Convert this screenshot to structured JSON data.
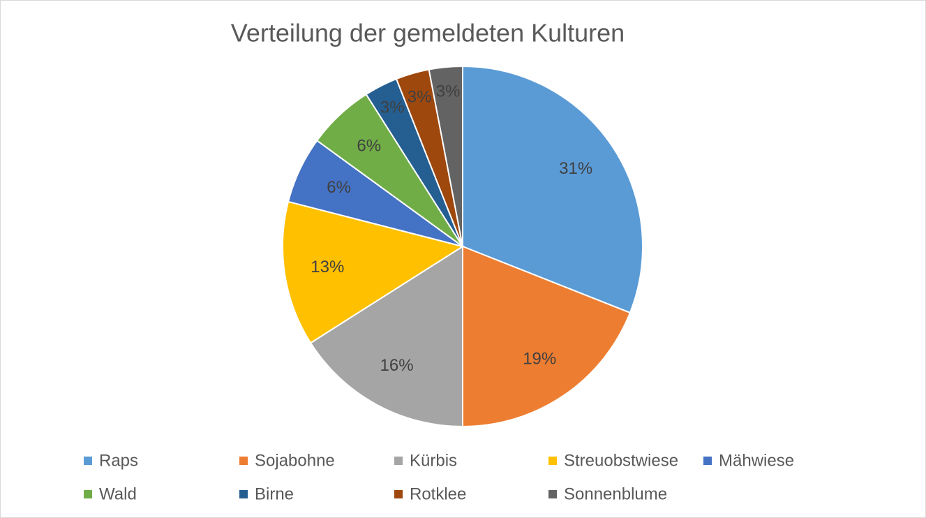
{
  "chart_data": {
    "type": "pie",
    "title": "Verteilung der gemeldeten Kulturen",
    "categories": [
      "Raps",
      "Sojabohne",
      "Kürbis",
      "Streuobstwiese",
      "Mähwiese",
      "Wald",
      "Birne",
      "Rotklee",
      "Sonnenblume"
    ],
    "values": [
      31,
      19,
      16,
      13,
      6,
      6,
      3,
      3,
      3
    ],
    "value_labels": [
      "31%",
      "19%",
      "16%",
      "13%",
      "6%",
      "6%",
      "3%",
      "3%",
      "3%"
    ],
    "colors": [
      "#5b9bd5",
      "#ed7d31",
      "#a5a5a5",
      "#ffc000",
      "#4472c4",
      "#70ad47",
      "#255e91",
      "#9e480e",
      "#636363"
    ],
    "legend": "bottom"
  }
}
